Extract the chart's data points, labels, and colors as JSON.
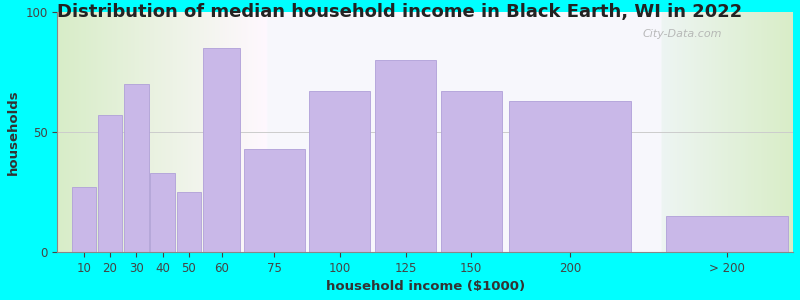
{
  "title": "Distribution of median household income in Black Earth, WI in 2022",
  "xlabel": "household income ($1000)",
  "ylabel": "households",
  "bar_labels": [
    "10",
    "20",
    "30",
    "40",
    "50",
    "60",
    "75",
    "100",
    "125",
    "150",
    "200",
    "> 200"
  ],
  "bar_values": [
    27,
    57,
    70,
    33,
    25,
    85,
    43,
    67,
    80,
    67,
    63,
    15
  ],
  "bar_color": "#c9b8e8",
  "bar_edge_color": "#b0a0d8",
  "ylim": [
    0,
    100
  ],
  "yticks": [
    0,
    50,
    100
  ],
  "background_color": "#00ffff",
  "title_fontsize": 13,
  "subtitle_fontsize": 10,
  "subtitle_color": "#2255aa",
  "axis_label_fontsize": 9.5,
  "watermark_text": "City-Data.com",
  "bar_widths": [
    10,
    10,
    10,
    10,
    10,
    15,
    25,
    25,
    25,
    25,
    50,
    50
  ],
  "bar_lefts": [
    5,
    15,
    25,
    35,
    45,
    55,
    70,
    95,
    120,
    145,
    170,
    230
  ]
}
